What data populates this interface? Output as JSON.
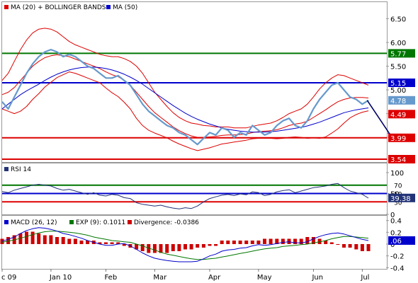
{
  "chart_data": {
    "type": "line",
    "x_labels": [
      "c 09",
      "Jan 10",
      "Feb",
      "Mar",
      "Apr",
      "May",
      "Jun",
      "Jul"
    ],
    "colors": {
      "price": "#6699cc",
      "bands": "#dd0000",
      "ma50": "#0000cc",
      "resistance": "#007700",
      "pivot": "#0000cc",
      "support": "#dd0000",
      "rsi": "#223377",
      "macd": "#0000cc",
      "signal": "#007700",
      "divergence": "#cc0000"
    },
    "price_panel": {
      "legend": [
        {
          "label": "MA (20) + BOLLINGER BANDS",
          "color": "#dd0000"
        },
        {
          "label": "MA (50)",
          "color": "#0000cc"
        }
      ],
      "y_ticks": [
        "6.50",
        "6.00",
        "5.50",
        "5.00",
        "4.50",
        "4.00"
      ],
      "y_tick_values": [
        6.5,
        6.0,
        5.5,
        5.0,
        4.5,
        4.0
      ],
      "ylim": [
        3.48,
        6.85
      ],
      "levels": [
        {
          "label": "5.77",
          "value": 5.77,
          "color": "#007700"
        },
        {
          "label": "5.15",
          "value": 5.15,
          "color": "#0000cc"
        },
        {
          "label": "3.99",
          "value": 3.99,
          "color": "#dd0000"
        },
        {
          "label": "3.54",
          "value": 3.54,
          "color": "#dd0000"
        }
      ],
      "tags": [
        {
          "label": "4.78",
          "value": 4.78,
          "color": "#6699cc"
        },
        {
          "label": "4.49",
          "value": 4.49,
          "color": "#dd0000"
        }
      ],
      "price": [
        4.75,
        4.6,
        4.85,
        5.1,
        5.35,
        5.55,
        5.7,
        5.8,
        5.85,
        5.8,
        5.7,
        5.75,
        5.7,
        5.6,
        5.5,
        5.45,
        5.35,
        5.25,
        5.25,
        5.3,
        5.2,
        5.1,
        4.9,
        4.7,
        4.55,
        4.45,
        4.35,
        4.25,
        4.2,
        4.1,
        4.05,
        3.95,
        3.85,
        3.98,
        4.1,
        4.05,
        4.2,
        4.15,
        4.0,
        4.1,
        4.05,
        4.25,
        4.15,
        4.05,
        4.1,
        4.25,
        4.35,
        4.4,
        4.25,
        4.2,
        4.35,
        4.6,
        4.8,
        4.95,
        5.1,
        5.15,
        5.0,
        4.85,
        4.8,
        4.7,
        4.78
      ],
      "ma20": [
        4.9,
        4.95,
        5.05,
        5.2,
        5.35,
        5.5,
        5.6,
        5.68,
        5.72,
        5.74,
        5.72,
        5.7,
        5.65,
        5.6,
        5.55,
        5.5,
        5.45,
        5.38,
        5.32,
        5.28,
        5.2,
        5.1,
        4.95,
        4.8,
        4.65,
        4.52,
        4.42,
        4.32,
        4.22,
        4.14,
        4.08,
        4.03,
        4.0,
        4.0,
        4.01,
        4.02,
        4.04,
        4.05,
        4.05,
        4.06,
        4.07,
        4.1,
        4.12,
        4.13,
        4.14,
        4.16,
        4.2,
        4.25,
        4.28,
        4.3,
        4.34,
        4.42,
        4.5,
        4.58,
        4.67,
        4.75,
        4.8,
        4.83,
        4.84,
        4.84,
        4.83
      ],
      "upper_band": [
        5.2,
        5.35,
        5.6,
        5.85,
        6.05,
        6.2,
        6.28,
        6.3,
        6.28,
        6.22,
        6.12,
        6.02,
        5.95,
        5.9,
        5.85,
        5.8,
        5.75,
        5.72,
        5.7,
        5.7,
        5.66,
        5.6,
        5.5,
        5.35,
        5.15,
        4.95,
        4.8,
        4.65,
        4.52,
        4.42,
        4.35,
        4.3,
        4.28,
        4.25,
        4.24,
        4.22,
        4.22,
        4.22,
        4.2,
        4.2,
        4.2,
        4.23,
        4.26,
        4.28,
        4.3,
        4.35,
        4.42,
        4.5,
        4.55,
        4.6,
        4.7,
        4.85,
        5.02,
        5.15,
        5.25,
        5.32,
        5.3,
        5.25,
        5.2,
        5.15,
        5.1
      ],
      "lower_band": [
        4.6,
        4.55,
        4.5,
        4.55,
        4.65,
        4.8,
        4.92,
        5.06,
        5.16,
        5.26,
        5.32,
        5.38,
        5.35,
        5.3,
        5.25,
        5.2,
        5.15,
        5.04,
        4.94,
        4.86,
        4.74,
        4.6,
        4.4,
        4.25,
        4.15,
        4.09,
        4.04,
        3.99,
        3.92,
        3.86,
        3.81,
        3.76,
        3.72,
        3.75,
        3.78,
        3.82,
        3.86,
        3.88,
        3.9,
        3.92,
        3.94,
        3.97,
        3.98,
        3.98,
        3.98,
        3.97,
        3.98,
        4.0,
        4.01,
        4.0,
        3.98,
        3.99,
        3.98,
        4.01,
        4.09,
        4.18,
        4.3,
        4.41,
        4.48,
        4.53,
        4.56
      ],
      "ma50": [
        4.6,
        4.7,
        4.8,
        4.9,
        4.98,
        5.05,
        5.12,
        5.2,
        5.27,
        5.33,
        5.38,
        5.42,
        5.45,
        5.47,
        5.48,
        5.48,
        5.47,
        5.45,
        5.42,
        5.38,
        5.33,
        5.27,
        5.2,
        5.12,
        5.03,
        4.94,
        4.85,
        4.76,
        4.67,
        4.59,
        4.51,
        4.44,
        4.38,
        4.33,
        4.28,
        4.24,
        4.2,
        4.17,
        4.15,
        4.13,
        4.12,
        4.11,
        4.11,
        4.11,
        4.12,
        4.13,
        4.15,
        4.17,
        4.19,
        4.21,
        4.24,
        4.28,
        4.32,
        4.37,
        4.42,
        4.47,
        4.52,
        4.55,
        4.58,
        4.6,
        4.62
      ],
      "forecast": [
        {
          "x": 59.8,
          "y": 4.78
        },
        {
          "x": 63.6,
          "y": 3.99
        }
      ]
    },
    "rsi_panel": {
      "legend": "RSI 14",
      "y_ticks": [
        "100",
        "50",
        "0"
      ],
      "y_tick_values": [
        100,
        50,
        0
      ],
      "ylim": [
        0,
        100
      ],
      "levels": [
        {
          "label": "70",
          "value": 70,
          "color": "#007700"
        },
        {
          "label": "50",
          "value": 50,
          "color": "#0000cc"
        },
        {
          "label": "30",
          "value": 30,
          "color": "#dd0000"
        }
      ],
      "tag": {
        "label": "39.38",
        "value": 39.38,
        "color": "#223377"
      },
      "rsi": [
        55,
        52,
        58,
        62,
        66,
        70,
        72,
        70,
        68,
        62,
        58,
        60,
        56,
        52,
        48,
        52,
        46,
        44,
        48,
        46,
        40,
        38,
        28,
        24,
        22,
        20,
        22,
        18,
        15,
        13,
        16,
        14,
        20,
        30,
        38,
        42,
        46,
        48,
        45,
        49,
        47,
        54,
        52,
        45,
        48,
        54,
        57,
        59,
        52,
        56,
        60,
        64,
        66,
        68,
        72,
        74,
        64,
        56,
        52,
        48,
        39
      ]
    },
    "macd_panel": {
      "legend": [
        {
          "label": "MACD (26, 12)",
          "color": "#0000cc"
        },
        {
          "label": "EXP (9): 0.1011",
          "color": "#007700"
        },
        {
          "label": "Divergence: -0.0386",
          "color": "#cc0000"
        }
      ],
      "y_ticks": [
        "0.4",
        "0.2",
        "0",
        "-0.2",
        "-0.4"
      ],
      "y_tick_values": [
        0.4,
        0.2,
        0.0,
        -0.2,
        -0.4
      ],
      "ylim": [
        -0.42,
        0.48
      ],
      "tag": {
        "label": ".06",
        "value": 0.06,
        "color": "#0000cc"
      },
      "macd": [
        0.05,
        0.08,
        0.12,
        0.18,
        0.23,
        0.26,
        0.28,
        0.27,
        0.25,
        0.22,
        0.18,
        0.16,
        0.13,
        0.1,
        0.06,
        0.03,
        0.0,
        -0.02,
        -0.02,
        0.0,
        0.01,
        -0.03,
        -0.09,
        -0.15,
        -0.2,
        -0.24,
        -0.26,
        -0.28,
        -0.29,
        -0.3,
        -0.3,
        -0.3,
        -0.29,
        -0.25,
        -0.2,
        -0.17,
        -0.12,
        -0.1,
        -0.09,
        -0.07,
        -0.06,
        -0.03,
        -0.01,
        -0.02,
        -0.01,
        0.01,
        0.03,
        0.04,
        0.02,
        0.02,
        0.04,
        0.09,
        0.13,
        0.16,
        0.18,
        0.19,
        0.17,
        0.14,
        0.11,
        0.08,
        0.06
      ],
      "signal": [
        0.03,
        0.05,
        0.07,
        0.1,
        0.13,
        0.16,
        0.19,
        0.21,
        0.22,
        0.22,
        0.21,
        0.2,
        0.19,
        0.17,
        0.15,
        0.12,
        0.1,
        0.08,
        0.06,
        0.05,
        0.04,
        0.03,
        0.0,
        -0.03,
        -0.07,
        -0.1,
        -0.14,
        -0.17,
        -0.19,
        -0.21,
        -0.23,
        -0.25,
        -0.26,
        -0.26,
        -0.25,
        -0.24,
        -0.22,
        -0.2,
        -0.18,
        -0.16,
        -0.14,
        -0.12,
        -0.1,
        -0.08,
        -0.07,
        -0.06,
        -0.04,
        -0.03,
        -0.02,
        -0.01,
        0.0,
        0.02,
        0.04,
        0.06,
        0.09,
        0.11,
        0.13,
        0.13,
        0.12,
        0.11,
        0.1
      ],
      "divergence": [
        0.03,
        0.04,
        0.05,
        0.06,
        0.07,
        0.07,
        0.06,
        0.05,
        0.05,
        0.04,
        0.04,
        0.03,
        0.03,
        0.02,
        0.02,
        0.02,
        0.01,
        0.01,
        0.01,
        0.01,
        -0.01,
        -0.02,
        -0.03,
        -0.04,
        -0.05,
        -0.05,
        -0.05,
        -0.05,
        -0.04,
        -0.04,
        -0.03,
        -0.03,
        -0.02,
        -0.02,
        -0.01,
        -0.01,
        0.02,
        0.02,
        0.02,
        0.02,
        0.02,
        0.02,
        0.02,
        0.03,
        0.03,
        0.03,
        0.03,
        0.03,
        0.03,
        0.03,
        0.04,
        0.04,
        0.03,
        0.02,
        0.01,
        0.0,
        -0.02,
        -0.02,
        -0.03,
        -0.04,
        -0.04
      ]
    }
  }
}
